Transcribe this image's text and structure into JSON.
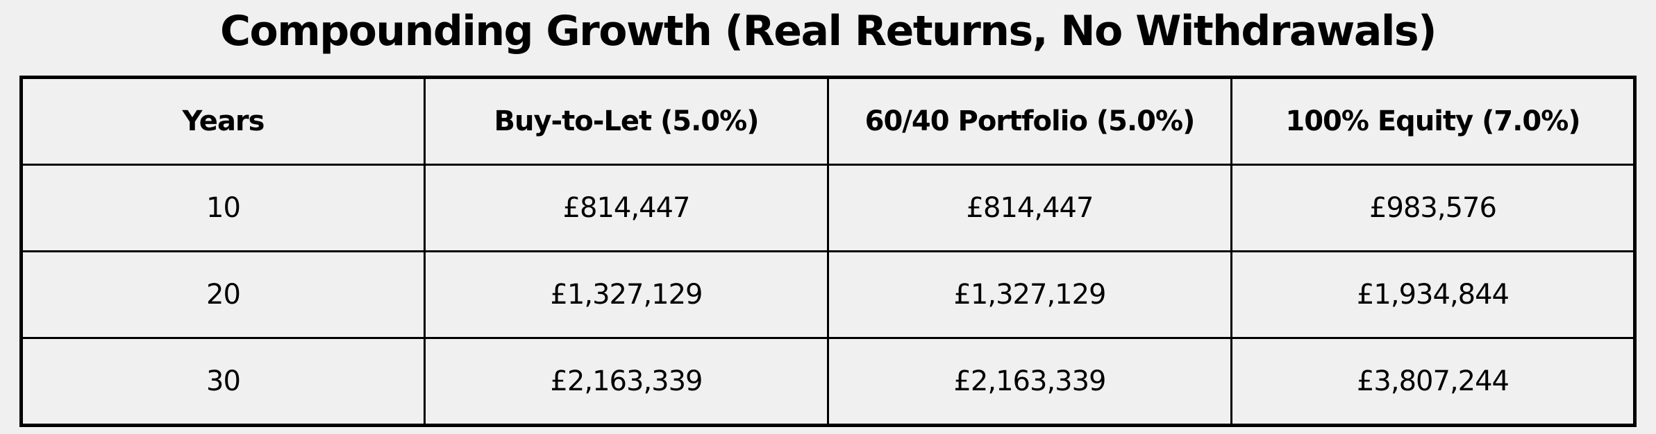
{
  "title": "Compounding Growth (Real Returns, No Withdrawals)",
  "colors": {
    "background": "#f0f0f0",
    "grid_border": "#000000",
    "text": "#000000"
  },
  "chart_data": {
    "type": "table",
    "title": "Compounding Growth (Real Returns, No Withdrawals)",
    "columns": [
      "Years",
      "Buy-to-Let (5.0%)",
      "60/40 Portfolio (5.0%)",
      "100% Equity (7.0%)"
    ],
    "rows": [
      [
        "10",
        "£814,447",
        "£814,447",
        "£983,576"
      ],
      [
        "20",
        "£1,327,129",
        "£1,327,129",
        "£1,934,844"
      ],
      [
        "30",
        "£2,163,339",
        "£2,163,339",
        "£3,807,244"
      ]
    ],
    "layout_hints": {
      "columns_equal_width": true,
      "header_row_bold": true,
      "cell_alignment": "center"
    }
  }
}
